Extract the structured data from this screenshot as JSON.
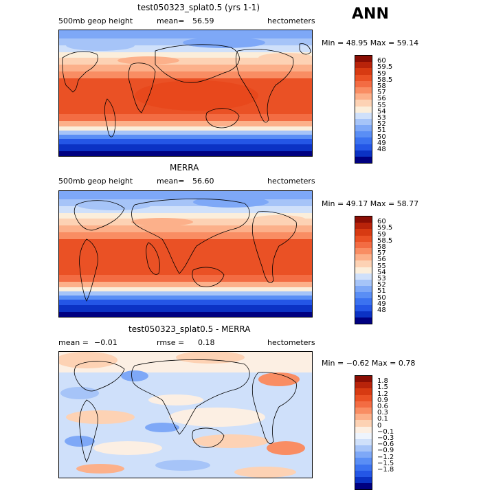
{
  "season": "ANN",
  "colors": {
    "abs_scale": [
      "#000080",
      "#0b32c4",
      "#2456e6",
      "#3b72f0",
      "#5a8ef5",
      "#7ea8f7",
      "#a6c4f8",
      "#cfe0fa",
      "#fbeedb",
      "#fdd2b4",
      "#fcb08a",
      "#f98d63",
      "#f36c43",
      "#ea5125",
      "#d73a12",
      "#b8230a",
      "#8a0e04"
    ],
    "diff_scale": [
      "#000080",
      "#0b32c4",
      "#2456e6",
      "#3b72f0",
      "#5a8ef5",
      "#7ea8f7",
      "#a6c4f8",
      "#cfe0fa",
      "#eef4fd",
      "#fcefe3",
      "#fdd2b4",
      "#fcb08a",
      "#f98d63",
      "#f36c43",
      "#ea5125",
      "#d73a12",
      "#b8230a",
      "#8a0e04"
    ]
  },
  "panels": [
    {
      "title": "test050323_splat0.5 (yrs 1-1)",
      "field": "500mb geop height",
      "mean_label": "mean=",
      "mean_value": "56.59",
      "units": "hectometers",
      "min_max": "Min =  48.95 Max =  59.14",
      "colorbar_labels": [
        "60",
        "59.5",
        "59",
        "58.5",
        "58",
        "57",
        "56",
        "55",
        "54",
        "53",
        "52",
        "51",
        "50",
        "49",
        "48"
      ],
      "field_type": "abs"
    },
    {
      "title": "MERRA",
      "field": "500mb geop height",
      "mean_label": "mean=",
      "mean_value": "56.60",
      "units": "hectometers",
      "min_max": "Min =  49.17 Max =  58.77",
      "colorbar_labels": [
        "60",
        "59.5",
        "59",
        "58.5",
        "58",
        "57",
        "56",
        "55",
        "54",
        "53",
        "52",
        "51",
        "50",
        "49",
        "48"
      ],
      "field_type": "abs"
    },
    {
      "title": "test050323_splat0.5 - MERRA",
      "mean_label": "mean =",
      "mean_value": "−0.01",
      "rmse_label": "rmse =",
      "rmse_value": "0.18",
      "units": "hectometers",
      "min_max": "Min =  −0.62 Max =   0.78",
      "colorbar_labels": [
        "1.8",
        "1.5",
        "1.2",
        "0.9",
        "0.6",
        "0.3",
        "0.1",
        "0",
        "−0.1",
        "−0.3",
        "−0.6",
        "−0.9",
        "−1.2",
        "−1.5",
        "−1.8"
      ],
      "field_type": "diff"
    }
  ]
}
